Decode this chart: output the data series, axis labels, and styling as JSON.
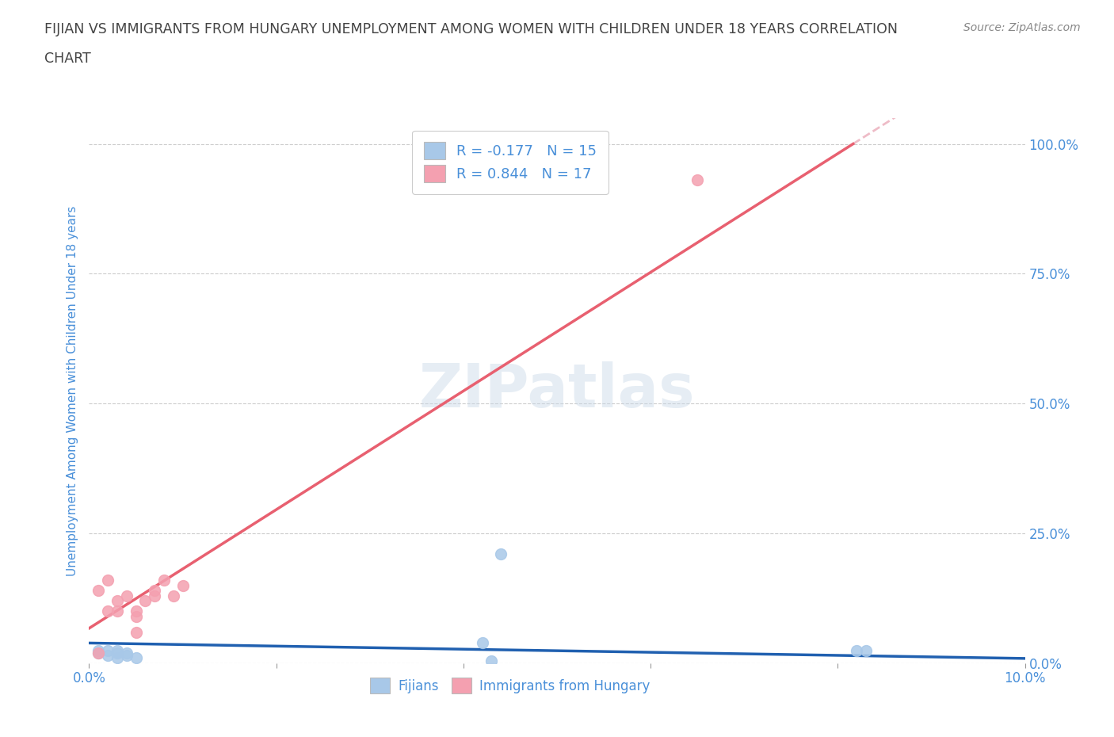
{
  "title_line1": "FIJIAN VS IMMIGRANTS FROM HUNGARY UNEMPLOYMENT AMONG WOMEN WITH CHILDREN UNDER 18 YEARS CORRELATION",
  "title_line2": "CHART",
  "source": "Source: ZipAtlas.com",
  "ylabel": "Unemployment Among Women with Children Under 18 years",
  "xlim": [
    0.0,
    0.1
  ],
  "ylim": [
    0.0,
    1.05
  ],
  "yticks": [
    0.0,
    0.25,
    0.5,
    0.75,
    1.0
  ],
  "ytick_labels": [
    "0.0%",
    "25.0%",
    "50.0%",
    "75.0%",
    "100.0%"
  ],
  "xticks": [
    0.0,
    0.02,
    0.04,
    0.06,
    0.08,
    0.1
  ],
  "xtick_labels": [
    "0.0%",
    "",
    "",
    "",
    "",
    "10.0%"
  ],
  "fijians_x": [
    0.001,
    0.001,
    0.002,
    0.002,
    0.003,
    0.003,
    0.003,
    0.004,
    0.004,
    0.005,
    0.042,
    0.043,
    0.044,
    0.082,
    0.083
  ],
  "fijians_y": [
    0.02,
    0.025,
    0.015,
    0.025,
    0.01,
    0.02,
    0.025,
    0.015,
    0.02,
    0.01,
    0.04,
    0.005,
    0.21,
    0.025,
    0.025
  ],
  "hungary_x": [
    0.001,
    0.001,
    0.002,
    0.002,
    0.003,
    0.003,
    0.004,
    0.005,
    0.005,
    0.005,
    0.006,
    0.007,
    0.007,
    0.008,
    0.009,
    0.01,
    0.065
  ],
  "hungary_y": [
    0.02,
    0.14,
    0.1,
    0.16,
    0.1,
    0.12,
    0.13,
    0.06,
    0.09,
    0.1,
    0.12,
    0.13,
    0.14,
    0.16,
    0.13,
    0.15,
    0.93
  ],
  "fijians_color": "#a8c8e8",
  "hungary_color": "#f4a0b0",
  "fijians_line_color": "#2060b0",
  "hungary_line_color": "#e86070",
  "dashed_line_color": "#e8a0b0",
  "R_fijians": -0.177,
  "N_fijians": 15,
  "R_hungary": 0.844,
  "N_hungary": 17,
  "watermark": "ZIPatlas",
  "grid_color": "#cccccc",
  "background_color": "#ffffff",
  "title_color": "#444444",
  "axis_label_color": "#4a90d9",
  "tick_color": "#4a90d9"
}
